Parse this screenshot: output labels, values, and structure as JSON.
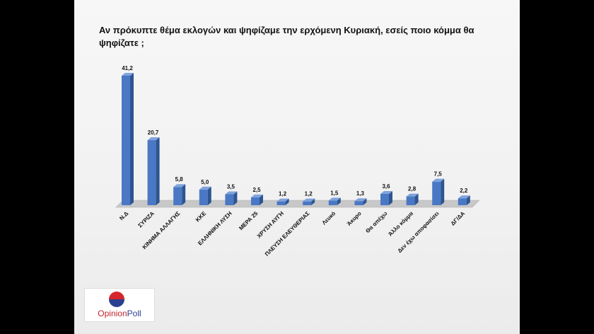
{
  "title": "Αν πρόκυπτε θέμα εκλογών και ψηφίζαμε την ερχόμενη Κυριακή, εσείς ποιο κόμμα θα ψηφίζατε ;",
  "logo": {
    "text_part1": "Opinion",
    "text_part2": "Poll"
  },
  "colors": {
    "bar_front": "#4a78c4",
    "bar_side": "#2d5592",
    "bar_top": "#7fa3dc",
    "floor": "#c8c8c8"
  },
  "chart_data": {
    "type": "bar",
    "title": "Αν πρόκυπτε θέμα εκλογών και ψηφίζαμε την ερχόμενη Κυριακή, εσείς ποιο κόμμα θα ψηφίζατε ;",
    "categories": [
      "Ν.Δ",
      "ΣΥΡΙΖΑ",
      "ΚΙΝΗΜΑ ΑΛΛΑΓΗΣ",
      "ΚΚΕ",
      "ΕΛΛΗΝΙΚΗ ΛΥΣΗ",
      "ΜΕΡΑ 25",
      "ΧΡΥΣΗ ΑΥΓΗ",
      "ΠΛΕΥΣΗ ΕΛΕΥΘΕΡΙΑΣ",
      "Λευκό",
      "Άκυρο",
      "Θα απέχω",
      "Άλλο κόμμα",
      "Δεν έχω αποφασίσει",
      "ΔΓ/ΔΑ"
    ],
    "values": [
      41.2,
      20.7,
      5.8,
      5.0,
      3.5,
      2.5,
      1.2,
      1.2,
      1.5,
      1.3,
      3.6,
      2.8,
      7.5,
      2.2
    ],
    "labels": [
      "41,2",
      "20,7",
      "5,8",
      "5,0",
      "3,5",
      "2,5",
      "1,2",
      "1,2",
      "1,5",
      "1,3",
      "3,6",
      "2,8",
      "7,5",
      "2,2"
    ],
    "ylim": [
      0,
      45
    ],
    "grid": false,
    "legend": "none"
  }
}
